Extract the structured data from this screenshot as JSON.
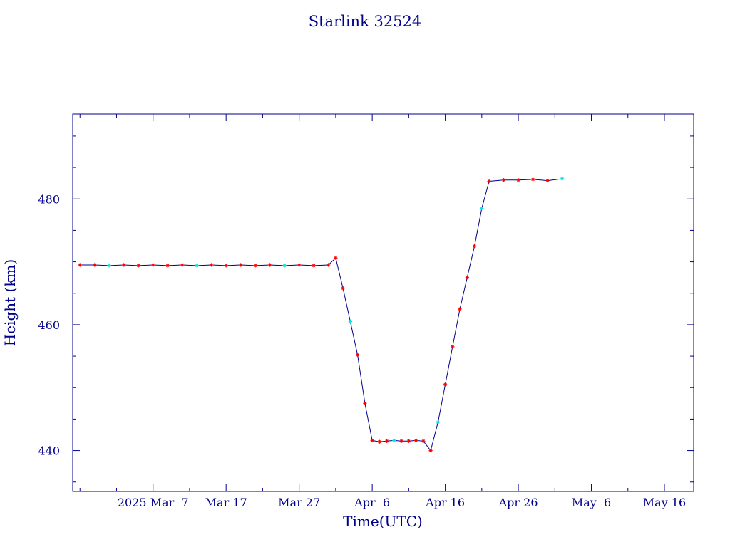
{
  "chart_data": {
    "type": "line",
    "title": "Starlink 32524",
    "xlabel": "Time(UTC)",
    "ylabel": "Height (km)",
    "xlim": [
      "2025-02-24",
      "2025-05-20"
    ],
    "ylim": [
      433.5,
      493.5
    ],
    "x_ticks": [
      "2025-03-07",
      "2025-03-17",
      "2025-03-27",
      "2025-04-06",
      "2025-04-16",
      "2025-04-26",
      "2025-05-06",
      "2025-05-16"
    ],
    "x_tick_labels": [
      "2025 Mar  7",
      "Mar 17",
      "Mar 27",
      "Apr  6",
      "Apr 16",
      "Apr 26",
      "May  6",
      "May 16"
    ],
    "y_ticks": [
      440,
      460,
      480
    ],
    "y_tick_labels": [
      "440",
      "460",
      "480"
    ],
    "grid": false,
    "legend": "none",
    "colors": {
      "axes": "#00008b",
      "line": "#00008b",
      "marker": "#ff0000",
      "marker_alt": "#00e5e5"
    },
    "series": [
      {
        "x": [
          "2025-02-25",
          "2025-02-27",
          "2025-03-01",
          "2025-03-03",
          "2025-03-05",
          "2025-03-07",
          "2025-03-09",
          "2025-03-11",
          "2025-03-13",
          "2025-03-15",
          "2025-03-17",
          "2025-03-19",
          "2025-03-21",
          "2025-03-23",
          "2025-03-25",
          "2025-03-27",
          "2025-03-29",
          "2025-03-31",
          "2025-04-01",
          "2025-04-02",
          "2025-04-03",
          "2025-04-04",
          "2025-04-05",
          "2025-04-06",
          "2025-04-07",
          "2025-04-08",
          "2025-04-09",
          "2025-04-10",
          "2025-04-11",
          "2025-04-12",
          "2025-04-13",
          "2025-04-14",
          "2025-04-15",
          "2025-04-16",
          "2025-04-17",
          "2025-04-18",
          "2025-04-19",
          "2025-04-20",
          "2025-04-21",
          "2025-04-22",
          "2025-04-24",
          "2025-04-26",
          "2025-04-28",
          "2025-04-30",
          "2025-05-02"
        ],
        "y": [
          469.5,
          469.5,
          469.4,
          469.5,
          469.4,
          469.5,
          469.4,
          469.5,
          469.4,
          469.5,
          469.4,
          469.5,
          469.4,
          469.5,
          469.4,
          469.5,
          469.4,
          469.5,
          470.6,
          465.8,
          460.5,
          455.2,
          447.5,
          441.6,
          441.4,
          441.5,
          441.6,
          441.5,
          441.5,
          441.6,
          441.5,
          440.0,
          444.5,
          450.5,
          456.5,
          462.5,
          467.5,
          472.5,
          478.5,
          482.8,
          483.0,
          483.0,
          483.1,
          482.9,
          483.2
        ]
      }
    ]
  }
}
